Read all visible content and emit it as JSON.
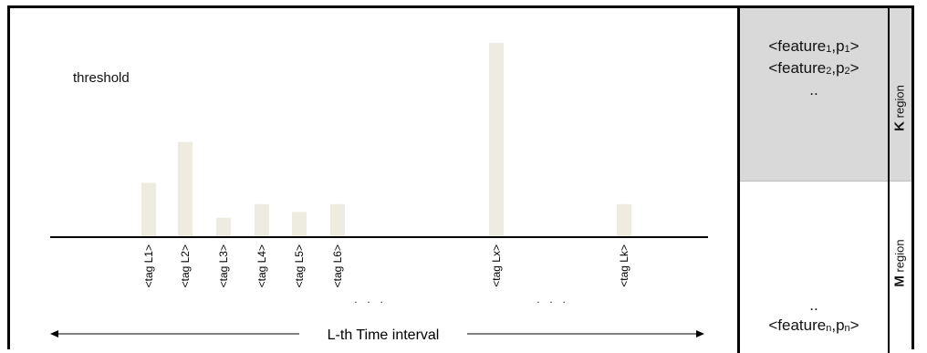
{
  "threshold_label": "threshold",
  "time_interval_label": "L-th Time interval",
  "ellipsis": ". . .",
  "tags": [
    {
      "label": "<tag L1>",
      "value": 0.28
    },
    {
      "label": "<tag L2>",
      "value": 0.49
    },
    {
      "label": "<tag L3>",
      "value": 0.1
    },
    {
      "label": "<tag L4>",
      "value": 0.17
    },
    {
      "label": "<tag L5>",
      "value": 0.13
    },
    {
      "label": "<tag L6>",
      "value": 0.17
    },
    {
      "label": "<tag Lx>",
      "value": 1.0
    },
    {
      "label": "<tag Lk>",
      "value": 0.17
    }
  ],
  "k_features": {
    "f1": {
      "name": "<feature",
      "sub1": "1",
      "mid": ",p",
      "sub2": "1",
      "end": ">"
    },
    "f2": {
      "name": "<feature",
      "sub1": "2",
      "mid": ",p",
      "sub2": "2",
      "end": ">"
    },
    "dots": ".."
  },
  "m_features": {
    "dots": "..",
    "fn": {
      "name": "<feature",
      "sub1": "n",
      "mid": ",p",
      "sub2": "n",
      "end": ">"
    }
  },
  "k_region": {
    "letter": "K",
    "word": "region"
  },
  "m_region": {
    "letter": "M",
    "word": "region"
  },
  "colors": {
    "bar": "#eeebe0",
    "k_bg": "#d9d9d9",
    "line": "#000000"
  }
}
